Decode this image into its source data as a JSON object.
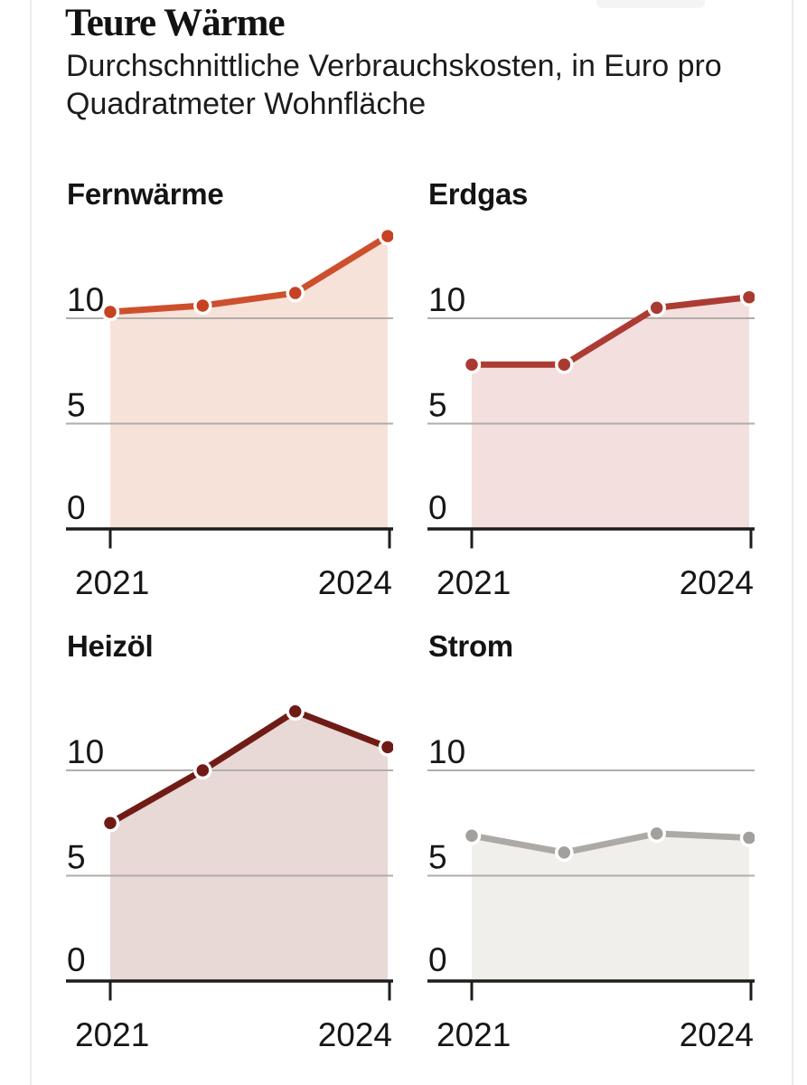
{
  "header": {
    "title": "Teure Wärme",
    "subtitle": "Durchschnittliche Verbrauchskosten, in Euro pro Quadratmeter Wohnfläche",
    "subtitle_lines": [
      "Durchschnittliche Verbrauchskosten, in Euro pro",
      "Quadratmeter Wohnfläche"
    ]
  },
  "chart_data": [
    {
      "type": "area",
      "title": "Fernwärme",
      "unit": "Euro pro Quadratmeter Wohnfläche",
      "x": [
        2021,
        2022,
        2023,
        2024
      ],
      "values": [
        10.3,
        10.6,
        11.2,
        13.9
      ],
      "yticks": [
        0,
        5,
        10
      ],
      "ylim": [
        0,
        14.8
      ],
      "xticks": [
        "2021",
        "2024"
      ],
      "grid": true,
      "line_color": "#cd4f2e",
      "dot_color": "#c64222",
      "fill_color": "#f7e2d9"
    },
    {
      "type": "area",
      "title": "Erdgas",
      "unit": "Euro pro Quadratmeter Wohnfläche",
      "x": [
        2021,
        2022,
        2023,
        2024
      ],
      "values": [
        7.8,
        7.8,
        10.5,
        11.0
      ],
      "yticks": [
        0,
        5,
        10
      ],
      "ylim": [
        0,
        14.8
      ],
      "xticks": [
        "2021",
        "2024"
      ],
      "grid": true,
      "line_color": "#ac3b33",
      "dot_color": "#a93a32",
      "fill_color": "#f3dfde"
    },
    {
      "type": "area",
      "title": "Heizöl",
      "unit": "Euro pro Quadratmeter Wohnfläche",
      "x": [
        2021,
        2022,
        2023,
        2024
      ],
      "values": [
        7.5,
        10.0,
        12.8,
        11.1
      ],
      "yticks": [
        0,
        5,
        10
      ],
      "ylim": [
        0,
        14.8
      ],
      "xticks": [
        "2021",
        "2024"
      ],
      "grid": true,
      "line_color": "#701c16",
      "dot_color": "#6f1a14",
      "fill_color": "#e8d8d6"
    },
    {
      "type": "area",
      "title": "Strom",
      "unit": "Euro pro Quadratmeter Wohnfläche",
      "x": [
        2021,
        2022,
        2023,
        2024
      ],
      "values": [
        6.9,
        6.1,
        7.0,
        6.8
      ],
      "yticks": [
        0,
        5,
        10
      ],
      "ylim": [
        0,
        14.8
      ],
      "xticks": [
        "2021",
        "2024"
      ],
      "grid": true,
      "line_color": "#adaaa6",
      "dot_color": "#a2a09c",
      "fill_color": "#f0efeb"
    }
  ],
  "style": {
    "grid_color": "#b1adaa",
    "axis_color": "#1d1d1b",
    "text_color": "#161616",
    "background": "#ffffff"
  }
}
